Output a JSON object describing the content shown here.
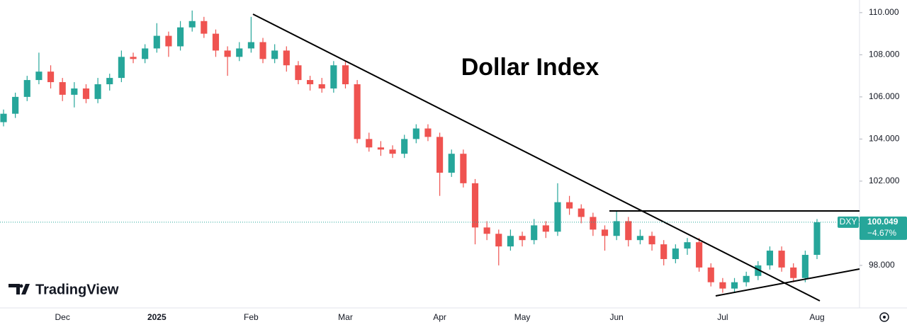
{
  "chart_data": {
    "type": "candlestick",
    "title": "Dollar Index",
    "branding": "TradingView",
    "symbol": "DXY",
    "change_label": "−4.67%",
    "up_color": "#26a69a",
    "down_color": "#ef5350",
    "grid": false,
    "categories": [
      null,
      null,
      null,
      null,
      null,
      "Dec",
      null,
      null,
      null,
      null,
      null,
      null,
      null,
      "2025",
      null,
      null,
      null,
      null,
      null,
      null,
      null,
      "Feb",
      null,
      null,
      null,
      null,
      null,
      null,
      null,
      "Mar",
      null,
      null,
      null,
      null,
      null,
      null,
      null,
      "Apr",
      null,
      null,
      null,
      null,
      null,
      null,
      "May",
      null,
      null,
      null,
      null,
      null,
      null,
      null,
      "Jun",
      null,
      null,
      null,
      null,
      null,
      null,
      null,
      null,
      "Jul",
      null,
      null,
      null,
      null,
      null,
      null,
      null,
      "Aug"
    ],
    "open": [
      104.8,
      105.2,
      106.0,
      106.8,
      107.2,
      106.7,
      106.1,
      106.4,
      105.9,
      106.6,
      106.9,
      107.9,
      107.8,
      108.3,
      108.9,
      108.4,
      109.3,
      109.6,
      109.0,
      108.2,
      107.9,
      108.3,
      108.6,
      107.8,
      108.2,
      107.5,
      106.8,
      106.6,
      106.4,
      107.5,
      106.6,
      104.0,
      103.6,
      103.5,
      103.3,
      104.0,
      104.5,
      104.1,
      102.4,
      103.3,
      101.9,
      99.8,
      99.5,
      98.9,
      99.4,
      99.2,
      99.9,
      99.6,
      101.0,
      100.7,
      100.3,
      99.7,
      99.4,
      100.1,
      99.2,
      99.4,
      99.0,
      98.3,
      98.8,
      99.1,
      97.9,
      97.2,
      96.9,
      97.2,
      97.5,
      98.0,
      98.7,
      97.9,
      97.4,
      98.5
    ],
    "high": [
      105.4,
      106.2,
      107.0,
      108.1,
      107.5,
      106.9,
      106.7,
      106.6,
      106.9,
      107.1,
      108.2,
      108.1,
      108.5,
      109.5,
      109.1,
      109.6,
      110.1,
      109.8,
      109.2,
      108.4,
      108.6,
      109.8,
      108.8,
      108.5,
      108.4,
      107.7,
      107.0,
      106.9,
      107.7,
      107.7,
      106.8,
      104.3,
      103.9,
      103.7,
      104.2,
      104.7,
      104.7,
      104.3,
      103.5,
      103.5,
      102.1,
      100.1,
      99.7,
      99.7,
      99.6,
      100.2,
      100.1,
      101.9,
      101.3,
      100.9,
      100.5,
      99.9,
      100.6,
      100.3,
      99.7,
      99.6,
      99.2,
      99.0,
      99.3,
      99.3,
      98.1,
      97.4,
      97.4,
      97.7,
      98.2,
      98.9,
      98.9,
      98.1,
      98.7,
      100.2
    ],
    "low": [
      104.6,
      105.0,
      105.8,
      106.6,
      106.4,
      105.8,
      105.5,
      105.7,
      105.7,
      106.3,
      106.7,
      107.6,
      107.6,
      108.1,
      107.9,
      108.2,
      109.1,
      108.8,
      107.9,
      107.0,
      107.7,
      108.1,
      107.6,
      107.6,
      107.2,
      106.6,
      106.3,
      106.2,
      106.2,
      106.4,
      103.8,
      103.4,
      103.2,
      103.1,
      103.1,
      103.8,
      103.9,
      101.3,
      102.2,
      101.7,
      99.0,
      99.2,
      98.0,
      98.7,
      98.9,
      99.0,
      99.3,
      99.4,
      100.4,
      100.0,
      99.4,
      98.7,
      99.2,
      98.9,
      99.0,
      98.7,
      98.0,
      98.1,
      98.5,
      97.7,
      97.0,
      96.7,
      96.7,
      97.0,
      97.3,
      97.8,
      97.7,
      97.2,
      97.2,
      98.3
    ],
    "close": [
      105.2,
      106.0,
      106.8,
      107.2,
      106.7,
      106.1,
      106.4,
      105.9,
      106.6,
      106.9,
      107.9,
      107.8,
      108.3,
      108.9,
      108.4,
      109.3,
      109.6,
      109.0,
      108.2,
      107.9,
      108.3,
      108.6,
      107.8,
      108.2,
      107.5,
      106.8,
      106.6,
      106.4,
      107.5,
      106.6,
      104.0,
      103.6,
      103.5,
      103.3,
      104.0,
      104.5,
      104.1,
      102.4,
      103.3,
      101.9,
      99.8,
      99.5,
      98.9,
      99.4,
      99.2,
      99.9,
      99.6,
      101.0,
      100.7,
      100.3,
      99.7,
      99.4,
      100.1,
      99.2,
      99.4,
      99.0,
      98.3,
      98.8,
      99.1,
      97.9,
      97.2,
      96.9,
      97.2,
      97.5,
      98.0,
      98.7,
      97.9,
      97.4,
      98.5,
      100.049
    ],
    "ylim": [
      95.98,
      110.6
    ],
    "yticks": [
      {
        "value": 98,
        "label": "98.000"
      },
      {
        "value": 102,
        "label": "102.000"
      },
      {
        "value": 104,
        "label": "104.000"
      },
      {
        "value": 106,
        "label": "106.000"
      },
      {
        "value": 108,
        "label": "108.000"
      },
      {
        "value": 110,
        "label": "110.000"
      }
    ]
  }
}
